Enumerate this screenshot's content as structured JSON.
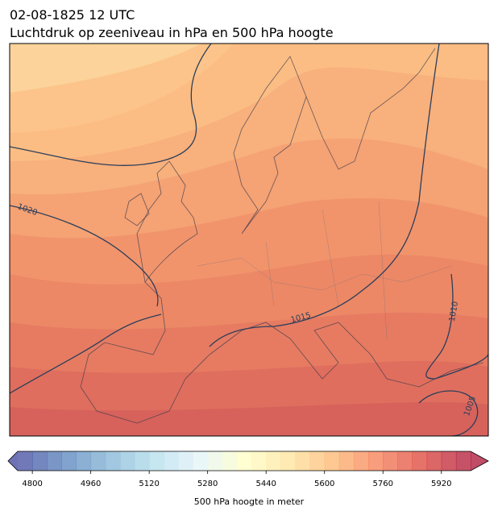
{
  "header": {
    "title_line1": "02-08-1825 12 UTC",
    "title_line2": "Luchtdruk op zeeniveau in hPa en 500 hPa hoogte"
  },
  "map": {
    "contour_labels": [
      "1020",
      "1015",
      "1010",
      "1005"
    ]
  },
  "colorbar": {
    "lim": [
      4760,
      6000
    ],
    "ticks": [
      4800,
      4960,
      5120,
      5280,
      5440,
      5600,
      5760,
      5920
    ],
    "band_step": 40,
    "colors": [
      "#313695",
      "#4575b4",
      "#74add1",
      "#abd9e9",
      "#e0f3f8",
      "#ffffbf",
      "#fee090",
      "#fdae61",
      "#f46d43",
      "#d73027",
      "#a50026"
    ],
    "opacity": 0.7,
    "label": "500 hPa hoogte in meter"
  }
}
